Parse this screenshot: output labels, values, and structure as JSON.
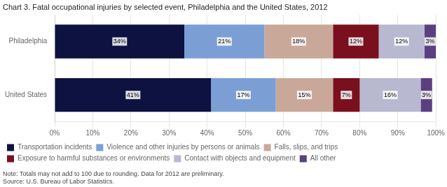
{
  "chart_data": {
    "type": "bar",
    "orientation": "horizontal",
    "stacked": true,
    "title": "Chart 3. Fatal occupational injuries by selected event, Philadelphia and the United States, 2012",
    "categories": [
      "Philadelphia",
      "United States"
    ],
    "series": [
      {
        "name": "Transportation incidents",
        "color": "#0d1240",
        "values": [
          34,
          41
        ],
        "value_labels": [
          "34%",
          "41%"
        ]
      },
      {
        "name": "Violence and other injuries by persons or animals",
        "color": "#7b9fd4",
        "values": [
          21,
          17
        ],
        "value_labels": [
          "21%",
          "17%"
        ]
      },
      {
        "name": "Falls, slips, and trips",
        "color": "#c9a89a",
        "values": [
          18,
          15
        ],
        "value_labels": [
          "18%",
          "15%"
        ]
      },
      {
        "name": "Exposure to harmful substances or environments",
        "color": "#7a0f1e",
        "values": [
          12,
          7
        ],
        "value_labels": [
          "12%",
          "7%"
        ]
      },
      {
        "name": "Contact with objects and equipment",
        "color": "#b8b8d0",
        "values": [
          12,
          16
        ],
        "value_labels": [
          "12%",
          "16%"
        ]
      },
      {
        "name": "All other",
        "color": "#5a4080",
        "values": [
          3,
          3
        ],
        "value_labels": [
          "3%",
          "3%"
        ]
      }
    ],
    "xlim": [
      0,
      100
    ],
    "xticks": [
      {
        "value": 0,
        "label": "0%"
      },
      {
        "value": 10,
        "label": "10%"
      },
      {
        "value": 20,
        "label": "20%"
      },
      {
        "value": 30,
        "label": "30%"
      },
      {
        "value": 40,
        "label": "40%"
      },
      {
        "value": 50,
        "label": "50%"
      },
      {
        "value": 60,
        "label": "60%"
      },
      {
        "value": 70,
        "label": "70%"
      },
      {
        "value": 80,
        "label": "80%"
      },
      {
        "value": 90,
        "label": "90%"
      },
      {
        "value": 100,
        "label": "100%"
      }
    ],
    "grid": true,
    "legend": "bottom",
    "data_labels": true,
    "annotations": [
      "Note: Totals may not add to 100 due to rounding. Data for 2012 are preliminary.",
      "Source: U.S. Bureau of Labor Statistics."
    ]
  }
}
